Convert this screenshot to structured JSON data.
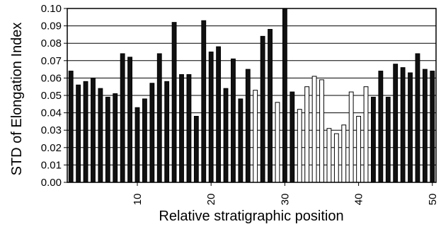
{
  "chart_data": {
    "type": "bar",
    "title": "",
    "xlabel": "Relative stratigraphic position",
    "ylabel": "STD of Elongation Index",
    "ylim": [
      0,
      0.1
    ],
    "yticks": [
      "0.00",
      "0.01",
      "0.02",
      "0.03",
      "0.04",
      "0.05",
      "0.06",
      "0.07",
      "0.08",
      "0.09",
      "0.10"
    ],
    "xticks": [
      "10",
      "20",
      "30",
      "40",
      "50"
    ],
    "grid": "horizontal",
    "legend": "none",
    "categories": [
      1,
      2,
      3,
      4,
      5,
      6,
      7,
      8,
      9,
      10,
      11,
      12,
      13,
      14,
      15,
      16,
      17,
      18,
      19,
      20,
      21,
      22,
      23,
      24,
      25,
      26,
      27,
      28,
      29,
      30,
      31,
      32,
      33,
      34,
      35,
      36,
      37,
      38,
      39,
      40,
      41,
      42,
      43,
      44,
      45,
      46,
      47,
      48,
      49,
      50
    ],
    "values": [
      0.064,
      0.056,
      0.058,
      0.06,
      0.054,
      0.049,
      0.051,
      0.074,
      0.072,
      0.043,
      0.048,
      0.057,
      0.074,
      0.058,
      0.092,
      0.062,
      0.062,
      0.038,
      0.093,
      0.075,
      0.078,
      0.054,
      0.071,
      0.048,
      0.065,
      0.053,
      0.084,
      0.088,
      0.046,
      0.1,
      0.052,
      0.042,
      0.055,
      0.061,
      0.059,
      0.031,
      0.028,
      0.033,
      0.052,
      0.038,
      0.055,
      0.049,
      0.064,
      0.049,
      0.068,
      0.066,
      0.063,
      0.074,
      0.065,
      0.064
    ],
    "fills": [
      "black",
      "black",
      "black",
      "black",
      "black",
      "black",
      "black",
      "black",
      "black",
      "black",
      "black",
      "black",
      "black",
      "black",
      "black",
      "black",
      "black",
      "black",
      "black",
      "black",
      "black",
      "black",
      "black",
      "black",
      "black",
      "white",
      "black",
      "black",
      "white",
      "black",
      "black",
      "white",
      "white",
      "white",
      "white",
      "white",
      "white",
      "white",
      "white",
      "white",
      "white",
      "black",
      "black",
      "black",
      "black",
      "black",
      "black",
      "black",
      "black",
      "black"
    ],
    "colors": {
      "black": "#111111",
      "white": "#ffffff",
      "grid": "#000000"
    }
  }
}
